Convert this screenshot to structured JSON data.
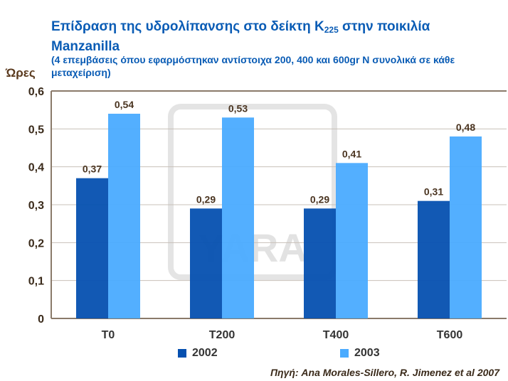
{
  "title_main": "Επίδραση της υδρολίπανσης στο δείκτη K",
  "title_sub": "225",
  "title_rest": " στην ποικιλία Manzanilla",
  "subtitle": "(4 επεμβάσεις όπου εφαρμόστηκαν αντίστοιχα 200, 400 και 600gr N συνολικά σε κάθε μεταχείριση)",
  "source": "Πηγή: Ana Morales-Sillero, R. Jimenez et al 2007",
  "watermark": "YARA",
  "chart_data": {
    "type": "bar",
    "title": "Επίδραση της υδρολίπανσης στο δείκτη K225 στην ποικιλία Manzanilla",
    "ylabel": "Ώρες",
    "xlabel": "",
    "categories": [
      "T0",
      "T200",
      "T400",
      "T600"
    ],
    "series": [
      {
        "name": "2002",
        "color": "#0550b0",
        "values": [
          0.37,
          0.29,
          0.29,
          0.31
        ],
        "labels": [
          "0,37",
          "0,29",
          "0,29",
          "0,31"
        ]
      },
      {
        "name": "2003",
        "color": "#4aabff",
        "values": [
          0.54,
          0.53,
          0.41,
          0.48
        ],
        "labels": [
          "0,54",
          "0,53",
          "0,41",
          "0,48"
        ]
      }
    ],
    "ylim": [
      0,
      0.6
    ],
    "yticks": [
      0,
      0.1,
      0.2,
      0.3,
      0.4,
      0.5,
      0.6
    ],
    "ytick_labels": [
      "0",
      "0,1",
      "0,2",
      "0,3",
      "0,4",
      "0,5",
      "0,6"
    ],
    "grid": true,
    "legend": "bottom"
  }
}
